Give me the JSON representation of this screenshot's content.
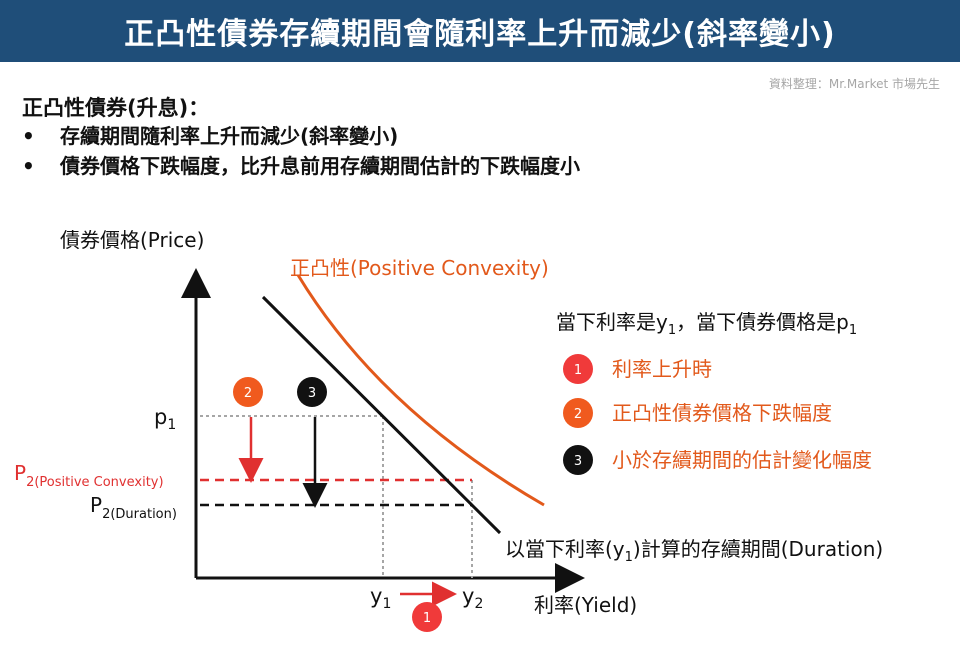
{
  "title": "正凸性債券存續期間會隨利率上升而減少(斜率變小)",
  "source_note": "資料整理：Mr.Market 市場先生",
  "intro": {
    "heading": "正凸性債券(升息)：",
    "bullets": [
      "存續期間隨利率上升而減少(斜率變小)",
      "債券價格下跌幅度，比升息前用存續期間估計的下跌幅度小"
    ]
  },
  "diagram": {
    "y_axis_label": "債券價格(Price)",
    "x_axis_label": "利率(Yield)",
    "curve_label": "正凸性(Positive Convexity)",
    "tangent_label_pre": "以當下利率(y",
    "tangent_label_sub": "1",
    "tangent_label_post": ")計算的存續期間(Duration)",
    "p1_label": "p",
    "p1_sub": "1",
    "p2_convexity_label": "P",
    "p2_convexity_sub": "2(Positive Convexity)",
    "p2_duration_label": "P",
    "p2_duration_sub": "2(Duration)",
    "y1_label": "y",
    "y1_sub": "1",
    "y2_label": "y",
    "y2_sub": "2",
    "marker_1": "1",
    "marker_2": "2",
    "marker_3": "3"
  },
  "legend": {
    "header_a": "當下利率是y",
    "header_a_sub": "1",
    "header_b": "，當下債券價格是p",
    "header_b_sub": "1",
    "items": [
      {
        "num": "1",
        "text": "利率上升時"
      },
      {
        "num": "2",
        "text": "正凸性債券價格下跌幅度"
      },
      {
        "num": "3",
        "text": "小於存續期間的估計變化幅度"
      }
    ]
  },
  "colors": {
    "banner": "#1f4e79",
    "convexity": "#e2591b",
    "estimate_red": "#e03030",
    "marker_red": "#f03a3a",
    "marker_orange": "#f05a1e",
    "marker_black": "#111111"
  }
}
